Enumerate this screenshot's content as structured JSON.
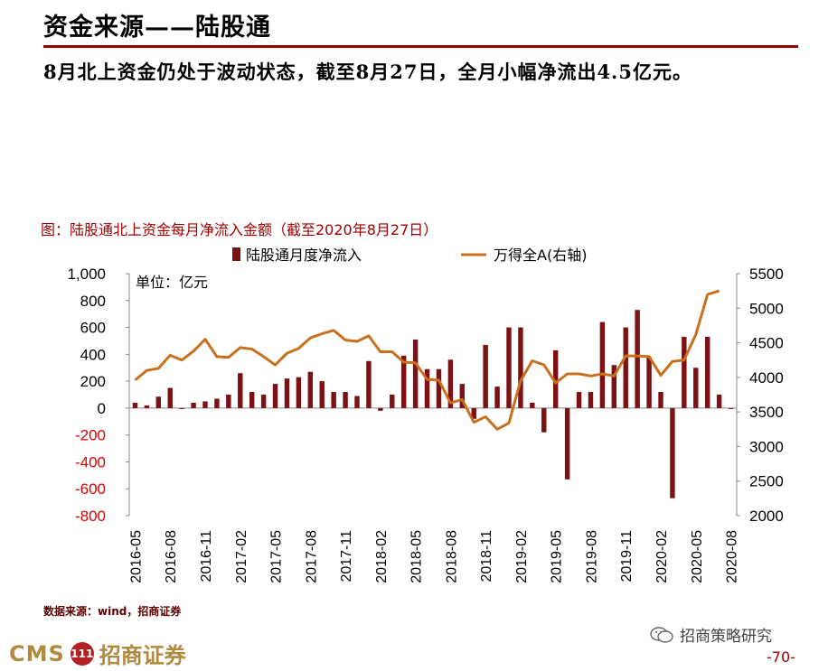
{
  "header": {
    "title": "资金来源——陆股通"
  },
  "subtitle": "8月北上资金仍处于波动状态，截至8月27日，全月小幅净流出4.5亿元。",
  "footer": {
    "source": "数据来源：wind，招商证券",
    "wechat": "招商策略研究",
    "logo_cms": "CMS",
    "logo_badge": "111",
    "logo_name": "招商证券",
    "page": "-70-"
  },
  "colors": {
    "bar": "#7b1113",
    "line": "#c8701e",
    "accent": "#8b0000",
    "negative_tick": "#e00000"
  },
  "chart_data": {
    "type": "bar+line",
    "title": "图：陆股通北上资金每月净流入金额（截至2020年8月27日）",
    "unit_note": "单位：亿元",
    "legend": [
      "陆股通月度净流入",
      "万得全A(右轴)"
    ],
    "legend_position": "top-center",
    "x": [
      "2016-05",
      "2016-06",
      "2016-07",
      "2016-08",
      "2016-09",
      "2016-10",
      "2016-11",
      "2016-12",
      "2017-01",
      "2017-02",
      "2017-03",
      "2017-04",
      "2017-05",
      "2017-06",
      "2017-07",
      "2017-08",
      "2017-09",
      "2017-10",
      "2017-11",
      "2017-12",
      "2018-01",
      "2018-02",
      "2018-03",
      "2018-04",
      "2018-05",
      "2018-06",
      "2018-07",
      "2018-08",
      "2018-09",
      "2018-10",
      "2018-11",
      "2018-12",
      "2019-01",
      "2019-02",
      "2019-03",
      "2019-04",
      "2019-05",
      "2019-06",
      "2019-07",
      "2019-08",
      "2019-09",
      "2019-10",
      "2019-11",
      "2019-12",
      "2020-01",
      "2020-02",
      "2020-03",
      "2020-04",
      "2020-05",
      "2020-06",
      "2020-07",
      "2020-08"
    ],
    "x_tick_labels": [
      "2016-05",
      "2016-08",
      "2016-11",
      "2017-02",
      "2017-05",
      "2017-08",
      "2017-11",
      "2018-02",
      "2018-05",
      "2018-08",
      "2018-11",
      "2019-02",
      "2019-05",
      "2019-08",
      "2019-11",
      "2020-02",
      "2020-05",
      "2020-08"
    ],
    "series": [
      {
        "name": "陆股通月度净流入",
        "axis": "left",
        "type": "bar",
        "values": [
          40,
          20,
          85,
          150,
          -5,
          40,
          50,
          70,
          100,
          260,
          120,
          100,
          180,
          220,
          230,
          270,
          200,
          120,
          120,
          90,
          350,
          -20,
          100,
          390,
          510,
          290,
          290,
          360,
          180,
          -80,
          470,
          160,
          600,
          600,
          40,
          -180,
          430,
          -530,
          120,
          120,
          640,
          320,
          600,
          730,
          380,
          120,
          -670,
          530,
          300,
          530,
          100,
          -5
        ]
      },
      {
        "name": "万得全A(右轴)",
        "axis": "right",
        "type": "line",
        "values": [
          3960,
          4100,
          4130,
          4320,
          4250,
          4380,
          4550,
          4300,
          4290,
          4430,
          4410,
          4300,
          4180,
          4350,
          4420,
          4570,
          4630,
          4680,
          4540,
          4520,
          4600,
          4370,
          4370,
          4220,
          4210,
          3970,
          3960,
          3630,
          3680,
          3350,
          3430,
          3250,
          3340,
          3950,
          4240,
          4180,
          3920,
          4050,
          4050,
          4020,
          4050,
          4020,
          4310,
          4310,
          4300,
          4030,
          4230,
          4250,
          4620,
          5200,
          5250,
          null
        ]
      }
    ],
    "y_left": {
      "min": -800,
      "max": 1000,
      "step": 200,
      "ticks": [
        "1,000",
        "800",
        "600",
        "400",
        "200",
        "0",
        "-200",
        "-400",
        "-600",
        "-800"
      ]
    },
    "y_right": {
      "min": 2000,
      "max": 5500,
      "step": 500,
      "ticks": [
        "5500",
        "5000",
        "4500",
        "4000",
        "3500",
        "3000",
        "2500",
        "2000"
      ]
    },
    "grid": false
  }
}
